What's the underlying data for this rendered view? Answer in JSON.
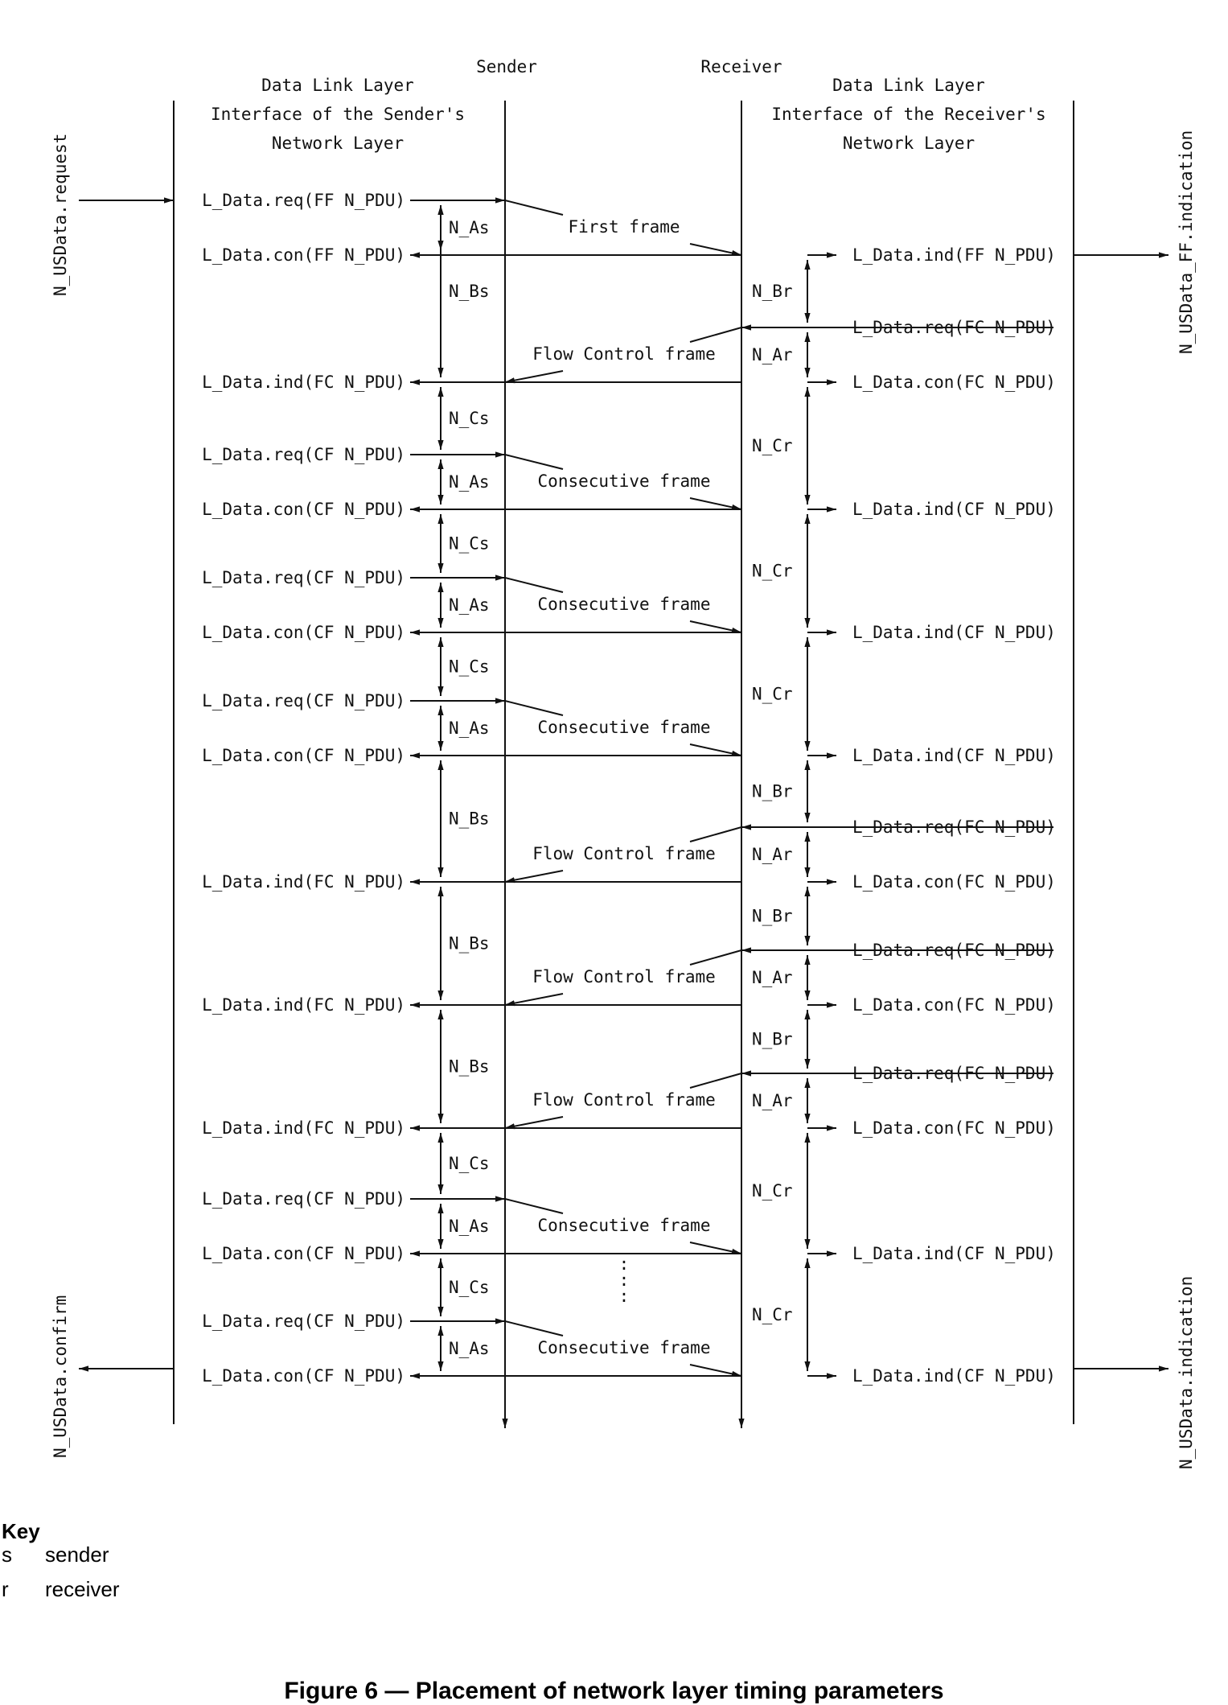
{
  "columns": {
    "sender": "Sender",
    "receiver": "Receiver",
    "left_iface": [
      "Data Link Layer",
      "Interface of the Sender's",
      "Network Layer"
    ],
    "right_iface": [
      "Data Link Layer",
      "Interface of the Receiver's",
      "Network Layer"
    ]
  },
  "service_labels": {
    "request": "N_USData.request",
    "ff_indication": "N_USData_FF.indication",
    "confirm": "N_USData.confirm",
    "indication": "N_USData.indication"
  },
  "frames": {
    "first": "First frame",
    "flow_control": "Flow Control frame",
    "consecutive": "Consecutive frame"
  },
  "primitives": {
    "req_ff": "L_Data.req(FF N_PDU)",
    "con_ff": "L_Data.con(FF N_PDU)",
    "ind_ff": "L_Data.ind(FF N_PDU)",
    "req_fc": "L_Data.req(FC N_PDU)",
    "con_fc": "L_Data.con(FC N_PDU)",
    "ind_fc": "L_Data.ind(FC N_PDU)",
    "req_cf": "L_Data.req(CF N_PDU)",
    "con_cf": "L_Data.con(CF N_PDU)",
    "ind_cf": "L_Data.ind(CF N_PDU)"
  },
  "timing": {
    "as": "N_As",
    "bs": "N_Bs",
    "cs": "N_Cs",
    "ar": "N_Ar",
    "br": "N_Br",
    "cr": "N_Cr"
  },
  "ellipsis": ":",
  "key": {
    "title": "Key",
    "items": [
      {
        "sym": "s",
        "desc": "sender"
      },
      {
        "sym": "r",
        "desc": "receiver"
      }
    ]
  },
  "caption": "Figure 6 — Placement of network layer timing parameters",
  "sequence": [
    "FF",
    "FC",
    "CF",
    "CF",
    "CF",
    "FC",
    "FC",
    "FC",
    "CF",
    "CF"
  ]
}
